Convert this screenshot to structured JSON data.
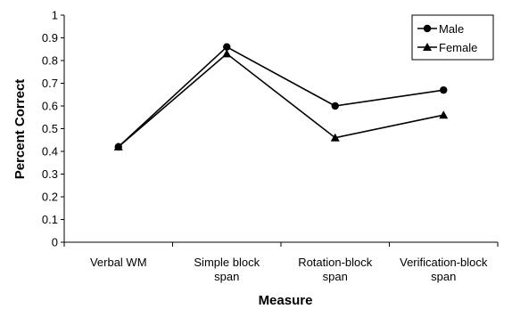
{
  "chart_data": {
    "type": "line",
    "categories": [
      [
        "Verbal WM"
      ],
      [
        "Simple block",
        "span"
      ],
      [
        "Rotation-block",
        "span"
      ],
      [
        "Verification-block",
        "span"
      ]
    ],
    "series": [
      {
        "name": "Male",
        "values": [
          0.42,
          0.86,
          0.6,
          0.67
        ],
        "marker": "circle",
        "color": "#000000"
      },
      {
        "name": "Female",
        "values": [
          0.42,
          0.83,
          0.46,
          0.56
        ],
        "marker": "triangle",
        "color": "#000000"
      }
    ],
    "xlabel": "Measure",
    "ylabel": "Percent Correct",
    "ylim": [
      0,
      1
    ],
    "yticks": [
      "0",
      "0.1",
      "0.2",
      "0.3",
      "0.4",
      "0.5",
      "0.6",
      "0.7",
      "0.8",
      "0.9",
      "1"
    ],
    "grid": false,
    "legend_position": "top-right"
  }
}
